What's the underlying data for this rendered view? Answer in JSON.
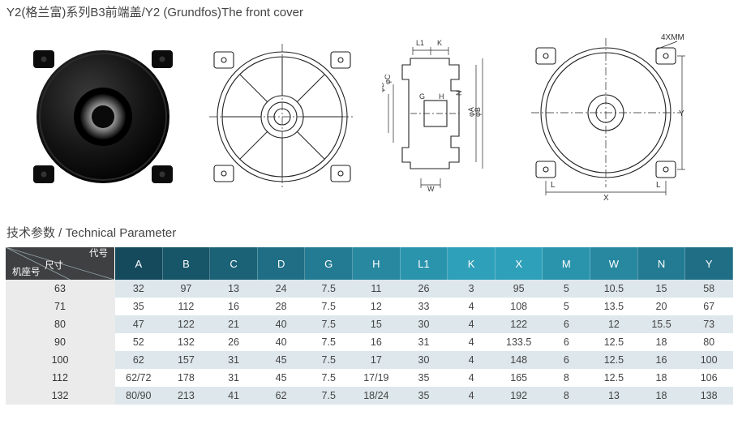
{
  "title": "Y2(格兰富)系列B3前端盖/Y2 (Grundfos)The front cover",
  "section_label": "技术参数 / Technical Parameter",
  "corner": {
    "top": "代号",
    "mid": "尺寸",
    "bot": "机座号"
  },
  "header_colors": [
    "#154a5d",
    "#175568",
    "#1b6277",
    "#1f6e85",
    "#237b93",
    "#2788a0",
    "#2b94ad",
    "#2fa0b9",
    "#2fa0b9",
    "#2b94ad",
    "#2788a0",
    "#237b93",
    "#1f6e85"
  ],
  "columns": [
    "A",
    "B",
    "C",
    "D",
    "G",
    "H",
    "L1",
    "K",
    "X",
    "M",
    "W",
    "N",
    "Y"
  ],
  "rows": [
    [
      "63",
      "32",
      "97",
      "13",
      "24",
      "7.5",
      "11",
      "26",
      "3",
      "95",
      "5",
      "10.5",
      "15",
      "58"
    ],
    [
      "71",
      "35",
      "112",
      "16",
      "28",
      "7.5",
      "12",
      "33",
      "4",
      "108",
      "5",
      "13.5",
      "20",
      "67"
    ],
    [
      "80",
      "47",
      "122",
      "21",
      "40",
      "7.5",
      "15",
      "30",
      "4",
      "122",
      "6",
      "12",
      "15.5",
      "73"
    ],
    [
      "90",
      "52",
      "132",
      "26",
      "40",
      "7.5",
      "16",
      "31",
      "4",
      "133.5",
      "6",
      "12.5",
      "18",
      "80"
    ],
    [
      "100",
      "62",
      "157",
      "31",
      "45",
      "7.5",
      "17",
      "30",
      "4",
      "148",
      "6",
      "12.5",
      "16",
      "100"
    ],
    [
      "112",
      "62/72",
      "178",
      "31",
      "45",
      "7.5",
      "17/19",
      "35",
      "4",
      "165",
      "8",
      "12.5",
      "18",
      "106"
    ],
    [
      "132",
      "80/90",
      "213",
      "41",
      "62",
      "7.5",
      "18/24",
      "35",
      "4",
      "192",
      "8",
      "13",
      "18",
      "138"
    ]
  ],
  "dim_labels": {
    "front": "4XMM",
    "side": [
      "L1",
      "K",
      "φD",
      "φC",
      "G",
      "H",
      "N",
      "φA",
      "φB",
      "W"
    ],
    "X": "X",
    "Y": "Y",
    "L": "L"
  },
  "svg": {
    "stroke": "#222",
    "thin": 0.9,
    "med": 1.2
  }
}
